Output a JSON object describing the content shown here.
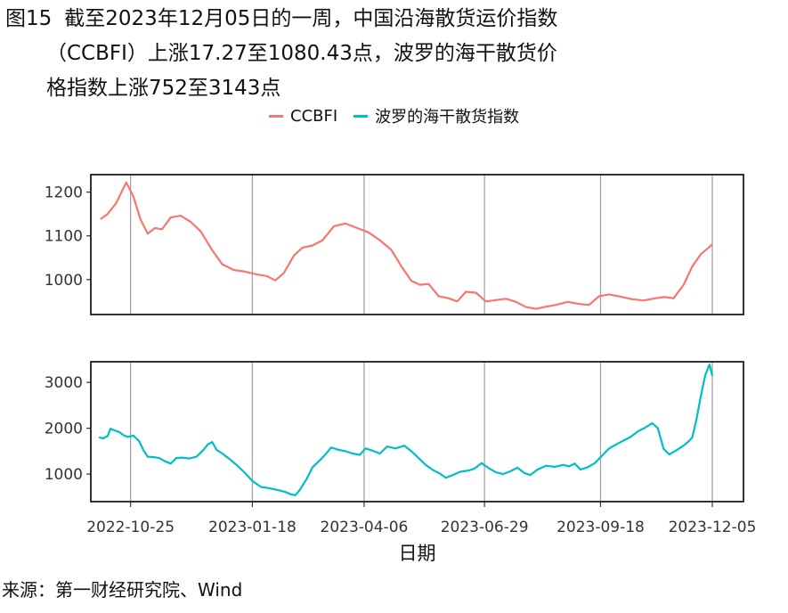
{
  "figure_label": "图15",
  "title_lines": [
    "截至2023年12月05日的一周，中国沿海散货运价指数",
    "（CCBFI）上涨17.27至1080.43点，波罗的海干散货价",
    "格指数上涨752至3143点"
  ],
  "source": "来源：第一财经研究院、Wind",
  "chart_data": {
    "type": "line",
    "xlabel": "日期",
    "x_ticks": [
      "2022-10-25",
      "2023-01-18",
      "2023-04-06",
      "2023-06-29",
      "2023-09-18",
      "2023-12-05"
    ],
    "x_range": [
      "2022-10-01",
      "2023-12-05"
    ],
    "grid": "vertical lines at x ticks",
    "legend_position": "top",
    "panels": [
      {
        "series": {
          "name": "CCBFI",
          "color": "#F8766D",
          "points": [
            [
              "2022-10-04",
              1138
            ],
            [
              "2022-10-09",
              1150
            ],
            [
              "2022-10-15",
              1175
            ],
            [
              "2022-10-22",
              1222
            ],
            [
              "2022-10-27",
              1190
            ],
            [
              "2022-11-01",
              1137
            ],
            [
              "2022-11-06",
              1105
            ],
            [
              "2022-11-11",
              1118
            ],
            [
              "2022-11-16",
              1115
            ],
            [
              "2022-11-22",
              1142
            ],
            [
              "2022-11-29",
              1146
            ],
            [
              "2022-12-06",
              1132
            ],
            [
              "2022-12-13",
              1110
            ],
            [
              "2022-12-21",
              1067
            ],
            [
              "2022-12-28",
              1035
            ],
            [
              "2023-01-05",
              1022
            ],
            [
              "2023-01-13",
              1018
            ],
            [
              "2023-01-21",
              1012
            ],
            [
              "2023-01-28",
              1008
            ],
            [
              "2023-02-03",
              998
            ],
            [
              "2023-02-09",
              1015
            ],
            [
              "2023-02-16",
              1055
            ],
            [
              "2023-02-22",
              1073
            ],
            [
              "2023-03-01",
              1078
            ],
            [
              "2023-03-08",
              1090
            ],
            [
              "2023-03-16",
              1122
            ],
            [
              "2023-03-24",
              1128
            ],
            [
              "2023-04-01",
              1118
            ],
            [
              "2023-04-09",
              1108
            ],
            [
              "2023-04-17",
              1090
            ],
            [
              "2023-04-25",
              1068
            ],
            [
              "2023-05-02",
              1030
            ],
            [
              "2023-05-09",
              997
            ],
            [
              "2023-05-15",
              988
            ],
            [
              "2023-05-21",
              990
            ],
            [
              "2023-05-28",
              962
            ],
            [
              "2023-06-04",
              957
            ],
            [
              "2023-06-10",
              950
            ],
            [
              "2023-06-16",
              972
            ],
            [
              "2023-06-23",
              970
            ],
            [
              "2023-06-30",
              950
            ],
            [
              "2023-07-07",
              953
            ],
            [
              "2023-07-14",
              956
            ],
            [
              "2023-07-21",
              949
            ],
            [
              "2023-07-28",
              937
            ],
            [
              "2023-08-04",
              933
            ],
            [
              "2023-08-11",
              938
            ],
            [
              "2023-08-18",
              942
            ],
            [
              "2023-08-26",
              949
            ],
            [
              "2023-09-03",
              944
            ],
            [
              "2023-09-10",
              942
            ],
            [
              "2023-09-17",
              962
            ],
            [
              "2023-09-24",
              966
            ],
            [
              "2023-10-02",
              961
            ],
            [
              "2023-10-10",
              955
            ],
            [
              "2023-10-18",
              952
            ],
            [
              "2023-10-26",
              957
            ],
            [
              "2023-11-02",
              960
            ],
            [
              "2023-11-08",
              957
            ],
            [
              "2023-11-15",
              988
            ],
            [
              "2023-11-21",
              1030
            ],
            [
              "2023-11-27",
              1058
            ],
            [
              "2023-12-05",
              1080.43
            ]
          ]
        },
        "y_ticks": [
          1000,
          1100,
          1200
        ],
        "y_range": [
          920,
          1240
        ]
      },
      {
        "series": {
          "name": "波罗的海干散货指数",
          "color": "#00BFC4",
          "points": [
            [
              "2022-10-03",
              1800
            ],
            [
              "2022-10-06",
              1780
            ],
            [
              "2022-10-09",
              1830
            ],
            [
              "2022-10-11",
              1990
            ],
            [
              "2022-10-14",
              1950
            ],
            [
              "2022-10-17",
              1920
            ],
            [
              "2022-10-20",
              1850
            ],
            [
              "2022-10-23",
              1810
            ],
            [
              "2022-10-27",
              1840
            ],
            [
              "2022-10-31",
              1720
            ],
            [
              "2022-11-03",
              1520
            ],
            [
              "2022-11-06",
              1380
            ],
            [
              "2022-11-10",
              1370
            ],
            [
              "2022-11-14",
              1350
            ],
            [
              "2022-11-18",
              1280
            ],
            [
              "2022-11-22",
              1230
            ],
            [
              "2022-11-26",
              1350
            ],
            [
              "2022-11-30",
              1360
            ],
            [
              "2022-12-05",
              1340
            ],
            [
              "2022-12-10",
              1380
            ],
            [
              "2022-12-15",
              1530
            ],
            [
              "2022-12-18",
              1650
            ],
            [
              "2022-12-21",
              1700
            ],
            [
              "2022-12-24",
              1530
            ],
            [
              "2022-12-28",
              1450
            ],
            [
              "2023-01-02",
              1330
            ],
            [
              "2023-01-07",
              1200
            ],
            [
              "2023-01-12",
              1050
            ],
            [
              "2023-01-18",
              850
            ],
            [
              "2023-01-24",
              720
            ],
            [
              "2023-01-30",
              690
            ],
            [
              "2023-02-05",
              650
            ],
            [
              "2023-02-10",
              610
            ],
            [
              "2023-02-14",
              560
            ],
            [
              "2023-02-17",
              540
            ],
            [
              "2023-02-20",
              650
            ],
            [
              "2023-02-25",
              900
            ],
            [
              "2023-03-01",
              1150
            ],
            [
              "2023-03-06",
              1300
            ],
            [
              "2023-03-10",
              1430
            ],
            [
              "2023-03-14",
              1580
            ],
            [
              "2023-03-19",
              1530
            ],
            [
              "2023-03-24",
              1500
            ],
            [
              "2023-03-29",
              1450
            ],
            [
              "2023-04-03",
              1420
            ],
            [
              "2023-04-07",
              1560
            ],
            [
              "2023-04-12",
              1510
            ],
            [
              "2023-04-17",
              1450
            ],
            [
              "2023-04-22",
              1600
            ],
            [
              "2023-04-28",
              1560
            ],
            [
              "2023-05-04",
              1620
            ],
            [
              "2023-05-09",
              1500
            ],
            [
              "2023-05-14",
              1350
            ],
            [
              "2023-05-19",
              1200
            ],
            [
              "2023-05-24",
              1090
            ],
            [
              "2023-05-29",
              1010
            ],
            [
              "2023-06-02",
              920
            ],
            [
              "2023-06-07",
              980
            ],
            [
              "2023-06-12",
              1050
            ],
            [
              "2023-06-18",
              1080
            ],
            [
              "2023-06-22",
              1120
            ],
            [
              "2023-06-27",
              1240
            ],
            [
              "2023-07-02",
              1130
            ],
            [
              "2023-07-07",
              1040
            ],
            [
              "2023-07-12",
              1000
            ],
            [
              "2023-07-17",
              1060
            ],
            [
              "2023-07-22",
              1140
            ],
            [
              "2023-07-27",
              1020
            ],
            [
              "2023-07-31",
              980
            ],
            [
              "2023-08-05",
              1100
            ],
            [
              "2023-08-11",
              1180
            ],
            [
              "2023-08-17",
              1160
            ],
            [
              "2023-08-23",
              1200
            ],
            [
              "2023-08-27",
              1170
            ],
            [
              "2023-08-31",
              1230
            ],
            [
              "2023-09-04",
              1100
            ],
            [
              "2023-09-09",
              1150
            ],
            [
              "2023-09-14",
              1240
            ],
            [
              "2023-09-19",
              1400
            ],
            [
              "2023-09-24",
              1560
            ],
            [
              "2023-09-29",
              1650
            ],
            [
              "2023-10-04",
              1730
            ],
            [
              "2023-10-09",
              1810
            ],
            [
              "2023-10-14",
              1930
            ],
            [
              "2023-10-19",
              2010
            ],
            [
              "2023-10-24",
              2110
            ],
            [
              "2023-10-28",
              2000
            ],
            [
              "2023-11-01",
              1550
            ],
            [
              "2023-11-05",
              1430
            ],
            [
              "2023-11-10",
              1520
            ],
            [
              "2023-11-14",
              1600
            ],
            [
              "2023-11-18",
              1700
            ],
            [
              "2023-11-21",
              1800
            ],
            [
              "2023-11-24",
              2200
            ],
            [
              "2023-11-27",
              2700
            ],
            [
              "2023-11-30",
              3150
            ],
            [
              "2023-12-03",
              3390
            ],
            [
              "2023-12-05",
              3143
            ]
          ]
        },
        "y_ticks": [
          1000,
          2000,
          3000
        ],
        "y_range": [
          400,
          3450
        ]
      }
    ]
  }
}
